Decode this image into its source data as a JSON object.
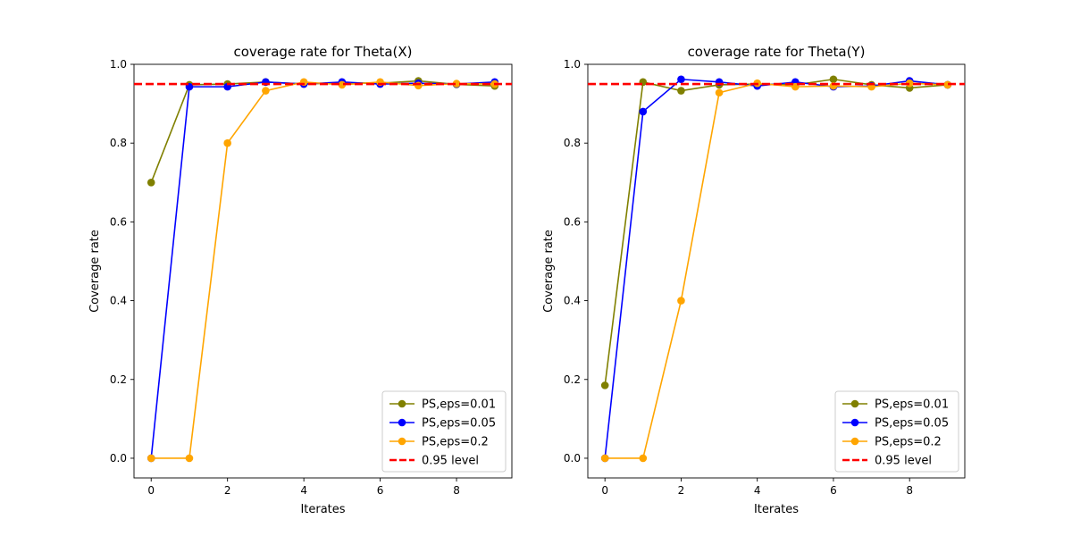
{
  "chart_data": [
    {
      "type": "line",
      "title": "coverage rate for Theta(X)",
      "xlabel": "Iterates",
      "ylabel": "Coverage rate",
      "xlim": [
        -0.45,
        9.45
      ],
      "ylim": [
        -0.05,
        1.0
      ],
      "xticks": [
        0,
        2,
        4,
        6,
        8
      ],
      "yticks": [
        0.0,
        0.2,
        0.4,
        0.6,
        0.8,
        1.0
      ],
      "xtick_labels": [
        "0",
        "2",
        "4",
        "6",
        "8"
      ],
      "ytick_labels": [
        "0.0",
        "0.2",
        "0.4",
        "0.6",
        "0.8",
        "1.0"
      ],
      "legend_position": "lower-right",
      "x": [
        0,
        1,
        2,
        3,
        4,
        5,
        6,
        7,
        8,
        9
      ],
      "series": [
        {
          "name": "PS,eps=0.01",
          "color": "#808000",
          "values": [
            0.7,
            0.948,
            0.95,
            0.955,
            0.95,
            0.953,
            0.952,
            0.958,
            0.949,
            0.945
          ]
        },
        {
          "name": "PS,eps=0.05",
          "color": "#0000ff",
          "values": [
            0.0,
            0.943,
            0.943,
            0.955,
            0.95,
            0.955,
            0.95,
            0.952,
            0.95,
            0.955
          ]
        },
        {
          "name": "PS,eps=0.2",
          "color": "#ffa500",
          "values": [
            0.0,
            0.0,
            0.8,
            0.933,
            0.955,
            0.948,
            0.955,
            0.946,
            0.951,
            0.95
          ]
        }
      ],
      "reference_line": {
        "name": "0.95 level",
        "value": 0.95,
        "color": "#ff0000"
      }
    },
    {
      "type": "line",
      "title": "coverage rate for Theta(Y)",
      "xlabel": "Iterates",
      "ylabel": "Coverage rate",
      "xlim": [
        -0.45,
        9.45
      ],
      "ylim": [
        -0.05,
        1.0
      ],
      "xticks": [
        0,
        2,
        4,
        6,
        8
      ],
      "yticks": [
        0.0,
        0.2,
        0.4,
        0.6,
        0.8,
        1.0
      ],
      "xtick_labels": [
        "0",
        "2",
        "4",
        "6",
        "8"
      ],
      "ytick_labels": [
        "0.0",
        "0.2",
        "0.4",
        "0.6",
        "0.8",
        "1.0"
      ],
      "legend_position": "lower-right",
      "x": [
        0,
        1,
        2,
        3,
        4,
        5,
        6,
        7,
        8,
        9
      ],
      "series": [
        {
          "name": "PS,eps=0.01",
          "color": "#808000",
          "values": [
            0.185,
            0.955,
            0.933,
            0.948,
            0.95,
            0.948,
            0.962,
            0.948,
            0.94,
            0.948
          ]
        },
        {
          "name": "PS,eps=0.05",
          "color": "#0000ff",
          "values": [
            0.0,
            0.88,
            0.962,
            0.955,
            0.945,
            0.955,
            0.943,
            0.945,
            0.958,
            0.948
          ]
        },
        {
          "name": "PS,eps=0.2",
          "color": "#ffa500",
          "values": [
            0.0,
            0.0,
            0.4,
            0.928,
            0.952,
            0.943,
            0.945,
            0.943,
            0.952,
            0.948
          ]
        }
      ],
      "reference_line": {
        "name": "0.95 level",
        "value": 0.95,
        "color": "#ff0000"
      }
    }
  ]
}
